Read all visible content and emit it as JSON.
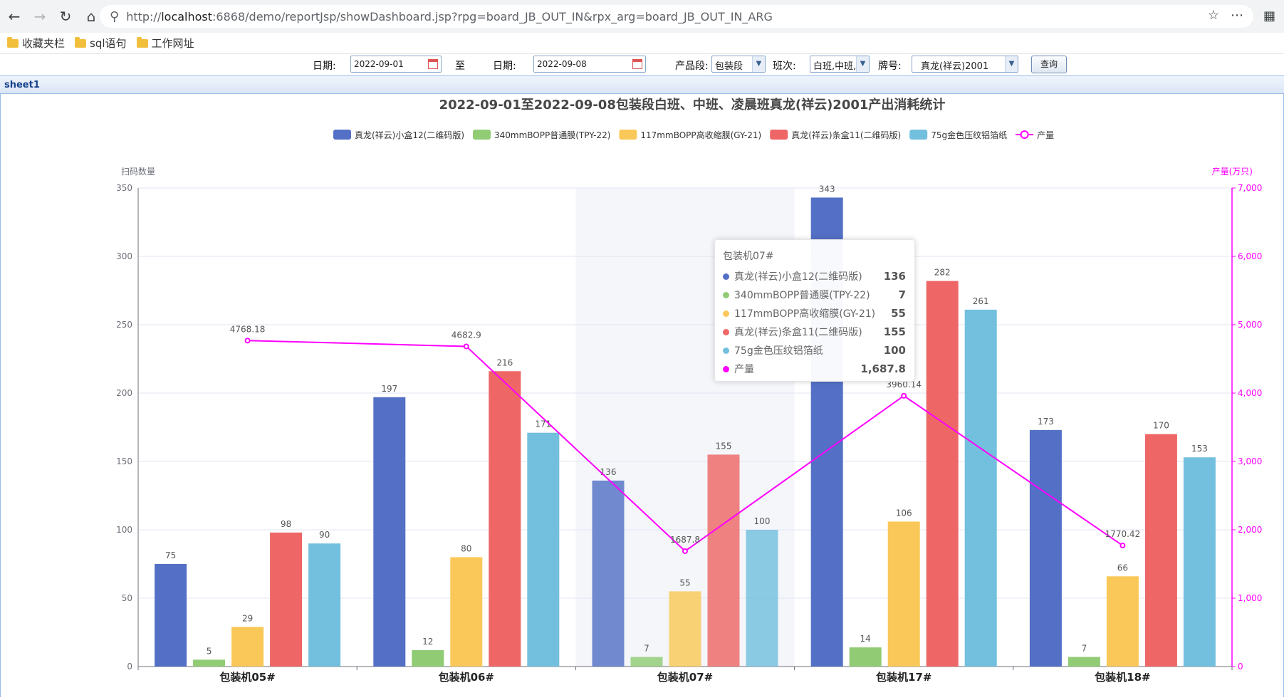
{
  "browser": {
    "url_prefix": "http://",
    "url_host": "localhost",
    "url_rest": ":6868/demo/reportJsp/showDashboard.jsp?rpg=board_JB_OUT_IN&rpx_arg=board_JB_OUT_IN_ARG",
    "bookmarks": [
      "收藏夹栏",
      "sql语句",
      "工作网址"
    ]
  },
  "filters": {
    "date_label_1": "日期:",
    "date_from": "2022-09-01",
    "to_label": "至",
    "date_label_2": "日期:",
    "date_to": "2022-09-08",
    "segment_label": "产品段:",
    "segment_value": "包装段",
    "shift_label": "班次:",
    "shift_value": "白班,中班,",
    "brand_label": "牌号:",
    "brand_value": "真龙(祥云)2001",
    "query_label": "查询"
  },
  "sheet_tab": "sheet1",
  "chart_data": {
    "type": "bar",
    "title": "2022-09-01至2022-09-08包装段白班、中班、凌晨班真龙(祥云)2001产出消耗统计",
    "categories": [
      "包装机05#",
      "包装机06#",
      "包装机07#",
      "包装机17#",
      "包装机18#"
    ],
    "series": [
      {
        "name": "真龙(祥云)小盒12(二维码版)",
        "color": "#5470c6",
        "values": [
          75,
          197,
          136,
          343,
          173
        ]
      },
      {
        "name": "340mmBOPP普通膜(TPY-22)",
        "color": "#91cc75",
        "values": [
          5,
          12,
          7,
          14,
          7
        ]
      },
      {
        "name": "117mmBOPP高收缩膜(GY-21)",
        "color": "#fac858",
        "values": [
          29,
          80,
          55,
          106,
          66
        ]
      },
      {
        "name": "真龙(祥云)条盒11(二维码版)",
        "color": "#ee6666",
        "values": [
          98,
          216,
          155,
          282,
          170
        ]
      },
      {
        "name": "75g金色压纹铝箔纸",
        "color": "#73c0de",
        "values": [
          90,
          171,
          100,
          261,
          153
        ]
      }
    ],
    "line_series": {
      "name": "产量",
      "color": "#ff00ff",
      "axis": "right",
      "values": [
        4768.18,
        4682.9,
        1687.8,
        3960.14,
        1770.42
      ],
      "labels": [
        "4768.18",
        "4682.9",
        "1687.8",
        "3960.14",
        "1770.42"
      ]
    },
    "ylabel_left": "扫码数量",
    "ylabel_right": "产量(万只)",
    "ylim_left": [
      0,
      350
    ],
    "ylim_right": [
      0,
      7000
    ],
    "yticks_left": [
      "0",
      "50",
      "100",
      "150",
      "200",
      "250",
      "300",
      "350"
    ],
    "yticks_right": [
      "0",
      "1,000",
      "2,000",
      "3,000",
      "4,000",
      "5,000",
      "6,000",
      "7,000"
    ],
    "legend_position": "top-center",
    "highlighted_category": "包装机07#"
  },
  "tooltip": {
    "title": "包装机07#",
    "rows": [
      {
        "name": "真龙(祥云)小盒12(二维码版)",
        "value": "136",
        "color": "#5470c6"
      },
      {
        "name": "340mmBOPP普通膜(TPY-22)",
        "value": "7",
        "color": "#91cc75"
      },
      {
        "name": "117mmBOPP高收缩膜(GY-21)",
        "value": "55",
        "color": "#fac858"
      },
      {
        "name": "真龙(祥云)条盒11(二维码版)",
        "value": "155",
        "color": "#ee6666"
      },
      {
        "name": "75g金色压纹铝箔纸",
        "value": "100",
        "color": "#73c0de"
      },
      {
        "name": "产量",
        "value": "1,687.8",
        "color": "#ff00ff"
      }
    ]
  }
}
